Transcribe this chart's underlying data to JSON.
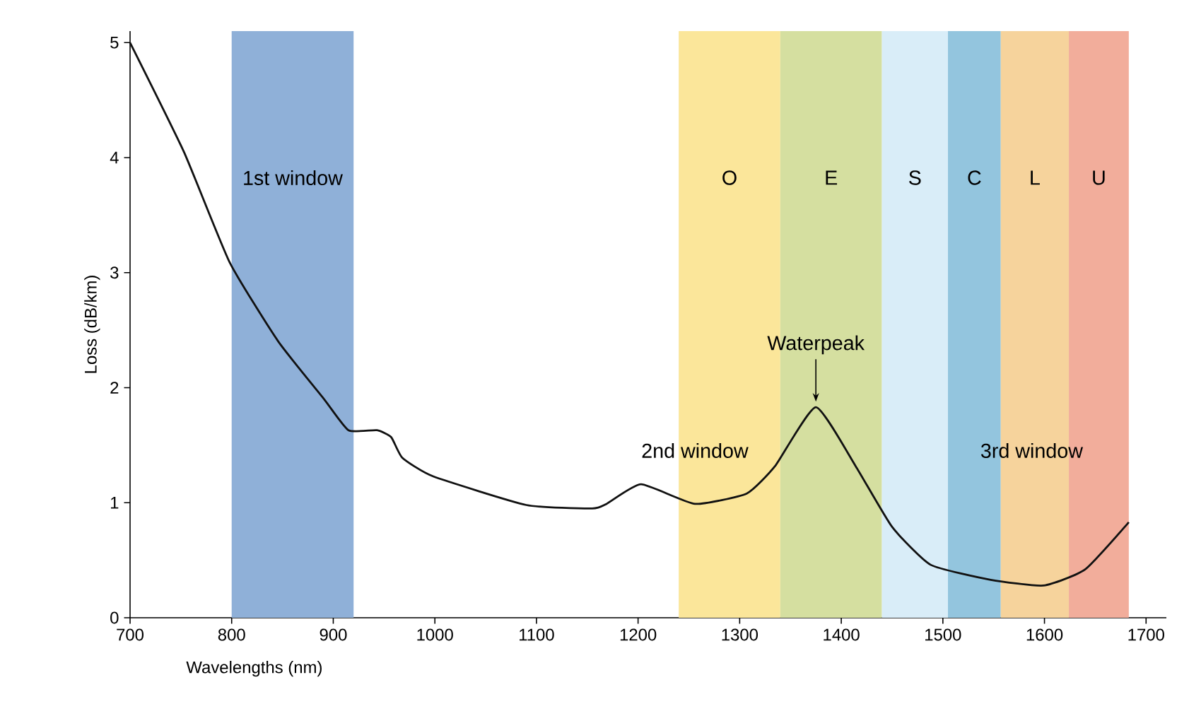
{
  "chart_data": {
    "type": "line",
    "xlabel": "Wavelengths (nm)",
    "ylabel": "Loss (dB/km)",
    "xlim": [
      700,
      1720
    ],
    "ylim": [
      0,
      5.1
    ],
    "xticks": [
      700,
      800,
      900,
      1000,
      1100,
      1200,
      1300,
      1400,
      1500,
      1600,
      1700
    ],
    "yticks": [
      0,
      1,
      2,
      3,
      4,
      5
    ],
    "grid": false,
    "series": [
      {
        "color": "#111111",
        "x": [
          700,
          753,
          798,
          846,
          891,
          915,
          943,
          957,
          968,
          998,
          1090,
          1155,
          1169,
          1203,
          1256,
          1307,
          1335,
          1375,
          1414,
          1450,
          1488,
          1547,
          1599,
          1640,
          1683
        ],
        "values": [
          5.0,
          4.05,
          3.09,
          2.4,
          1.9,
          1.63,
          1.63,
          1.57,
          1.39,
          1.23,
          0.98,
          0.95,
          0.99,
          1.16,
          0.99,
          1.08,
          1.32,
          1.83,
          1.32,
          0.79,
          0.46,
          0.33,
          0.28,
          0.42,
          0.83
        ]
      }
    ],
    "bands": [
      {
        "axis": "x",
        "from": 800,
        "to": 920,
        "label": "1st window",
        "color": "#8fb0d8"
      },
      {
        "axis": "x",
        "from": 1240,
        "to": 1340,
        "label": "O",
        "color": "#fbe69a"
      },
      {
        "axis": "x",
        "from": 1340,
        "to": 1440,
        "label": "E",
        "color": "#d5dfa0"
      },
      {
        "axis": "x",
        "from": 1440,
        "to": 1505,
        "label": "S",
        "color": "#d9edf8"
      },
      {
        "axis": "x",
        "from": 1505,
        "to": 1557,
        "label": "C",
        "color": "#93c5de"
      },
      {
        "axis": "x",
        "from": 1557,
        "to": 1624,
        "label": "L",
        "color": "#f6d39c"
      },
      {
        "axis": "x",
        "from": 1624,
        "to": 1683,
        "label": "U",
        "color": "#f2ad9b"
      }
    ],
    "annotations": [
      {
        "text": "Waterpeak",
        "x": 1375,
        "y": 1.83
      },
      "2nd window",
      "3rd window"
    ]
  }
}
